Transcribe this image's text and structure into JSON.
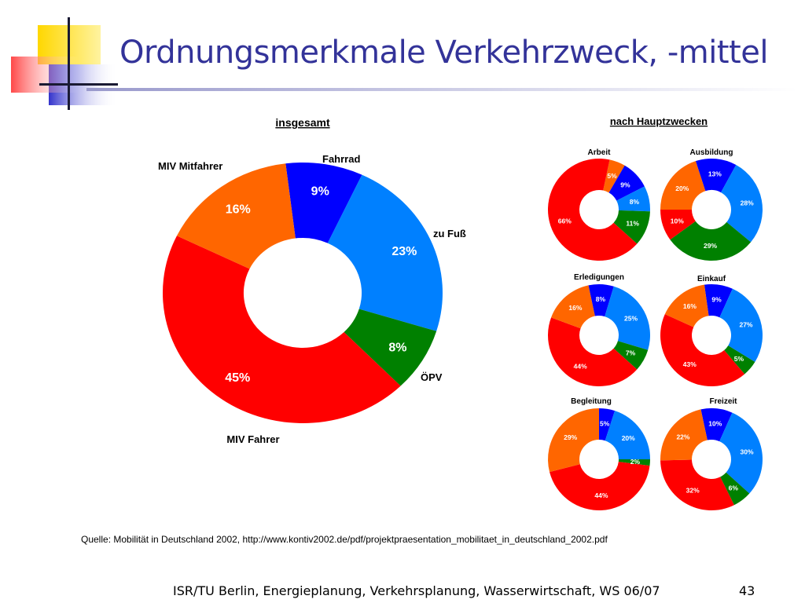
{
  "slide": {
    "title": "Ordnungsmerkmale Verkehrzweck, -mittel",
    "source": "Quelle: Mobilität in Deutschland 2002, http://www.kontiv2002.de/pdf/projektpraesentation_mobilitaet_in_deutschland_2002.pdf",
    "footer": "ISR/TU Berlin, Energieplanung, Verkehrsplanung, Wasserwirtschaft, WS 06/07",
    "page_number": "43"
  },
  "colors": {
    "title": "#333399",
    "MIV Fahrer": "#ff0000",
    "MIV Mitfahrer": "#ff6600",
    "Fahrrad": "#0000ff",
    "zu Fuß": "#0080ff",
    "ÖPV": "#008000"
  },
  "chart_data": [
    {
      "type": "pie",
      "style": "donut",
      "title": "insgesamt",
      "categories": [
        "Fahrrad",
        "zu Fuß",
        "ÖPV",
        "MIV Fahrer",
        "MIV Mitfahrer"
      ],
      "values": [
        9,
        23,
        8,
        45,
        16
      ],
      "value_labels": [
        "9%",
        "23%",
        "8%",
        "45%",
        "16%"
      ],
      "legend": "labels next to slices"
    },
    {
      "group_title": "nach Hauptzwecken",
      "type": "pie",
      "style": "donut",
      "title": "Arbeit",
      "categories": [
        "MIV Mitfahrer",
        "Fahrrad",
        "zu Fuß",
        "ÖPV",
        "MIV Fahrer"
      ],
      "values": [
        5,
        9,
        8,
        11,
        66
      ],
      "value_labels": [
        "5%",
        "9%",
        "8%",
        "11%",
        "66%"
      ]
    },
    {
      "type": "pie",
      "style": "donut",
      "title": "Ausbildung",
      "categories": [
        "Fahrrad",
        "zu Fuß",
        "ÖPV",
        "MIV Fahrer",
        "MIV Mitfahrer"
      ],
      "values": [
        13,
        28,
        29,
        10,
        20
      ],
      "value_labels": [
        "13%",
        "28%",
        "29%",
        "10%",
        "20%"
      ]
    },
    {
      "type": "pie",
      "style": "donut",
      "title": "Erledigungen",
      "categories": [
        "Fahrrad",
        "zu Fuß",
        "ÖPV",
        "MIV Fahrer",
        "MIV Mitfahrer"
      ],
      "values": [
        8,
        25,
        7,
        44,
        16
      ],
      "value_labels": [
        "8%",
        "25%",
        "7%",
        "44%",
        "16%"
      ]
    },
    {
      "type": "pie",
      "style": "donut",
      "title": "Einkauf",
      "categories": [
        "Fahrrad",
        "zu Fuß",
        "ÖPV",
        "MIV Fahrer",
        "MIV Mitfahrer"
      ],
      "values": [
        9,
        27,
        5,
        43,
        16
      ],
      "value_labels": [
        "9%",
        "27%",
        "5%",
        "43%",
        "16%"
      ]
    },
    {
      "type": "pie",
      "style": "donut",
      "title": "Begleitung",
      "categories": [
        "Fahrrad",
        "zu Fuß",
        "ÖPV",
        "MIV Fahrer",
        "MIV Mitfahrer"
      ],
      "values": [
        5,
        20,
        2,
        44,
        29
      ],
      "value_labels": [
        "5%",
        "20%",
        "2%",
        "44%",
        "29%"
      ]
    },
    {
      "type": "pie",
      "style": "donut",
      "title": "Freizeit",
      "categories": [
        "Fahrrad",
        "zu Fuß",
        "ÖPV",
        "MIV Fahrer",
        "MIV Mitfahrer"
      ],
      "values": [
        10,
        30,
        6,
        32,
        22
      ],
      "value_labels": [
        "10%",
        "30%",
        "6%",
        "32%",
        "22%"
      ]
    }
  ]
}
